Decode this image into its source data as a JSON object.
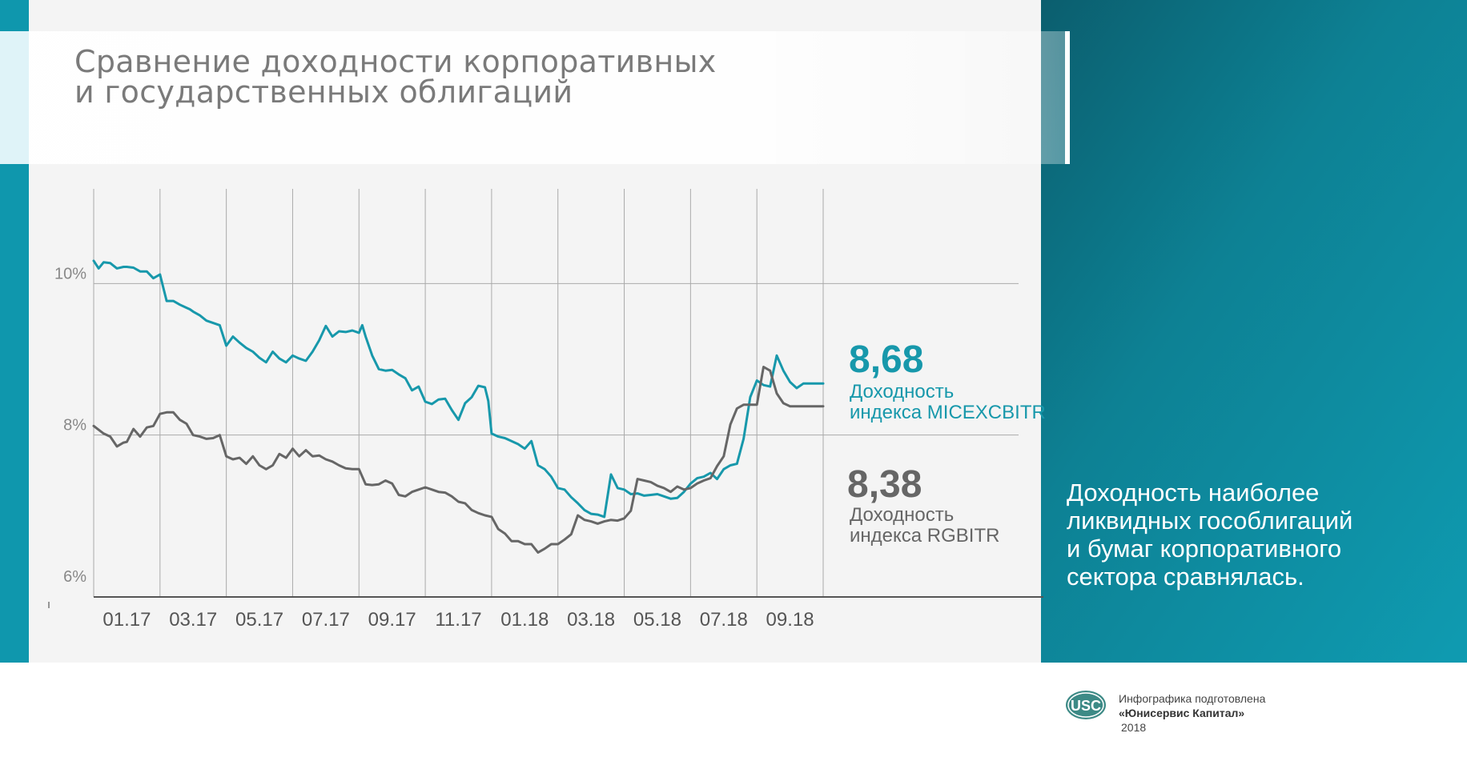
{
  "title": {
    "line1": "Сравнение доходности корпоративных",
    "line2": "и государственных облигаций"
  },
  "chart_data": {
    "type": "line",
    "title": "Сравнение доходности корпоративных и государственных облигаций",
    "y_tick_labels": [
      "10%",
      "8%",
      "6%"
    ],
    "y_ticks": [
      10,
      8,
      6
    ],
    "ylim": [
      6,
      11.25
    ],
    "x_tick_labels": [
      "01.17",
      "03.17",
      "05.17",
      "07.17",
      "09.17",
      "11.17",
      "01.18",
      "03.18",
      "05.18",
      "07.18",
      "09.18"
    ],
    "xlim": [
      0,
      22
    ],
    "grid": "vertical and horizontal",
    "legend": "right side labels",
    "series": [
      {
        "name": "Доходность индекса MICEXCBITR",
        "color": "#1798ab",
        "last_value": "8,68",
        "x": [
          0,
          0.15,
          0.3,
          0.5,
          0.7,
          0.9,
          1.0,
          1.2,
          1.4,
          1.6,
          1.8,
          2.0,
          2.2,
          2.4,
          2.6,
          2.8,
          2.9,
          3.0,
          3.2,
          3.4,
          3.6,
          3.8,
          4.0,
          4.2,
          4.4,
          4.6,
          4.8,
          5.0,
          5.2,
          5.4,
          5.6,
          5.8,
          6.0,
          6.2,
          6.4,
          6.6,
          6.8,
          7.0,
          7.2,
          7.4,
          7.6,
          7.8,
          8.0,
          8.1,
          8.2,
          8.4,
          8.6,
          8.8,
          9.0,
          9.2,
          9.4,
          9.6,
          9.8,
          10.0,
          10.2,
          10.4,
          10.6,
          10.8,
          11.0,
          11.2,
          11.4,
          11.6,
          11.8,
          11.9,
          12.0,
          12.2,
          12.4,
          12.6,
          12.8,
          13.0,
          13.2,
          13.4,
          13.6,
          13.8,
          14.0,
          14.2,
          14.4,
          14.6,
          14.8,
          15.0,
          15.2,
          15.4,
          15.6,
          15.8,
          16.0,
          16.2,
          16.4,
          16.6,
          16.8,
          17.0,
          17.2,
          17.4,
          17.6,
          17.8,
          18.0,
          18.2,
          18.4,
          18.6,
          18.8,
          19.0,
          19.2,
          19.4,
          19.6,
          19.8,
          20.0,
          20.2,
          20.4,
          20.6,
          20.8,
          21.0,
          21.2,
          21.4,
          21.6,
          21.8,
          22.0
        ],
        "values": [
          10.3,
          10.2,
          10.28,
          10.27,
          10.2,
          10.22,
          10.22,
          10.21,
          10.16,
          10.16,
          10.07,
          10.12,
          9.77,
          9.77,
          9.72,
          9.68,
          9.66,
          9.63,
          9.58,
          9.51,
          9.48,
          9.45,
          9.18,
          9.3,
          9.22,
          9.15,
          9.1,
          9.02,
          8.96,
          9.1,
          9.01,
          8.96,
          9.05,
          9.01,
          8.98,
          9.1,
          9.25,
          9.44,
          9.3,
          9.37,
          9.36,
          9.38,
          9.35,
          9.45,
          9.3,
          9.05,
          8.87,
          8.85,
          8.86,
          8.8,
          8.75,
          8.59,
          8.64,
          8.44,
          8.41,
          8.47,
          8.48,
          8.33,
          8.2,
          8.42,
          8.5,
          8.65,
          8.63,
          8.45,
          8.02,
          7.98,
          7.96,
          7.92,
          7.88,
          7.82,
          7.92,
          7.6,
          7.55,
          7.45,
          7.3,
          7.28,
          7.18,
          7.1,
          7.01,
          6.96,
          6.95,
          6.92,
          7.48,
          7.3,
          7.28,
          7.22,
          7.23,
          7.2,
          7.21,
          7.22,
          7.19,
          7.16,
          7.17,
          7.25,
          7.36,
          7.43,
          7.45,
          7.5,
          7.42,
          7.55,
          7.6,
          7.62,
          7.95,
          8.5,
          8.72,
          8.66,
          8.64,
          9.05,
          8.85,
          8.7,
          8.62,
          8.68,
          8.68,
          8.68,
          8.68
        ],
        "note_ignored_positions": false
      },
      {
        "name": "Доходность индекса RGBITR",
        "color": "#666666",
        "last_value": "8,38",
        "x": [
          0,
          0.3,
          0.5,
          0.7,
          0.9,
          1.0,
          1.2,
          1.4,
          1.6,
          1.8,
          2.0,
          2.2,
          2.4,
          2.6,
          2.8,
          3.0,
          3.2,
          3.4,
          3.6,
          3.8,
          4.0,
          4.2,
          4.4,
          4.6,
          4.8,
          5.0,
          5.2,
          5.4,
          5.6,
          5.8,
          6.0,
          6.2,
          6.4,
          6.6,
          6.8,
          7.0,
          7.2,
          7.4,
          7.6,
          7.8,
          8.0,
          8.2,
          8.4,
          8.6,
          8.8,
          9.0,
          9.2,
          9.4,
          9.6,
          9.8,
          10.0,
          10.2,
          10.4,
          10.6,
          10.8,
          11.0,
          11.2,
          11.4,
          11.6,
          11.8,
          12.0,
          12.2,
          12.4,
          12.6,
          12.8,
          13.0,
          13.2,
          13.4,
          13.6,
          13.8,
          14.0,
          14.2,
          14.4,
          14.6,
          14.8,
          15.0,
          15.2,
          15.4,
          15.6,
          15.8,
          16.0,
          16.2,
          16.4,
          16.6,
          16.8,
          17.0,
          17.2,
          17.4,
          17.6,
          17.8,
          18.0,
          18.2,
          18.4,
          18.6,
          18.8,
          19.0,
          19.2,
          19.4,
          19.6,
          19.8,
          20.0,
          20.2,
          20.4,
          20.6,
          20.8,
          21.0,
          21.2,
          21.4,
          21.6,
          21.8,
          22.0
        ],
        "values": [
          8.12,
          8.02,
          7.98,
          7.85,
          7.9,
          7.91,
          8.08,
          7.98,
          8.1,
          8.12,
          8.28,
          8.3,
          8.3,
          8.2,
          8.15,
          8.0,
          7.98,
          7.95,
          7.96,
          8.0,
          7.72,
          7.68,
          7.7,
          7.62,
          7.72,
          7.6,
          7.55,
          7.6,
          7.75,
          7.7,
          7.82,
          7.72,
          7.8,
          7.72,
          7.73,
          7.68,
          7.65,
          7.6,
          7.56,
          7.55,
          7.55,
          7.35,
          7.34,
          7.35,
          7.4,
          7.36,
          7.21,
          7.19,
          7.25,
          7.28,
          7.31,
          7.28,
          7.25,
          7.24,
          7.19,
          7.12,
          7.1,
          7.01,
          6.97,
          6.94,
          6.92,
          6.76,
          6.7,
          6.6,
          6.6,
          6.56,
          6.56,
          6.45,
          6.5,
          6.56,
          6.56,
          6.62,
          6.69,
          6.94,
          6.88,
          6.86,
          6.83,
          6.86,
          6.88,
          6.87,
          6.9,
          7.0,
          7.42,
          7.4,
          7.38,
          7.33,
          7.3,
          7.25,
          7.32,
          7.28,
          7.3,
          7.36,
          7.4,
          7.43,
          7.59,
          7.72,
          8.14,
          8.35,
          8.4,
          8.4,
          8.4,
          8.9,
          8.85,
          8.55,
          8.42,
          8.38,
          8.38,
          8.38,
          8.38,
          8.38,
          8.38
        ]
      }
    ]
  },
  "labels": {
    "micex_value": "8,68",
    "micex_line1": "Доходность",
    "micex_line2": "индекса MICEXCBITR",
    "rgbi_value": "8,38",
    "rgbi_line1": "Доходность",
    "rgbi_line2": "индекса RGBITR"
  },
  "caption": {
    "line1": "Доходность наиболее",
    "line2": "ликвидных гособлигаций",
    "line3": "и бумаг корпоративного",
    "line4": "сектора сравнялась."
  },
  "footer": {
    "logo_text": "USC",
    "line1": "Инфографика подготовлена",
    "line2": "«Юнисервис Капитал»",
    "line3": "2018"
  },
  "colors": {
    "teal": "#1798ab",
    "grey": "#666666",
    "panel_gradient_start": "#0b5e6e",
    "panel_gradient_end": "#0f9bb1"
  }
}
